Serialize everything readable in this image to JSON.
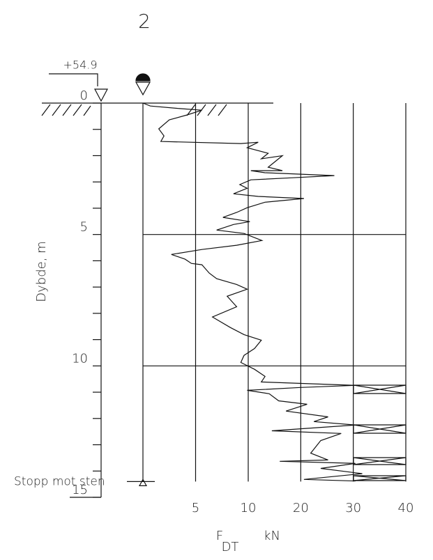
{
  "chart_data": {
    "type": "line",
    "title": "2",
    "elevation": "+54.9",
    "ylabel": "Dybde, m",
    "xlabel": "F",
    "xlabel_sub": "DT",
    "unit": "kN",
    "annotation": "Stopp mot sten",
    "stop_depth": 14.4,
    "xlim": [
      0,
      15
    ],
    "xticks": [
      0,
      5,
      10,
      15
    ],
    "xticks_minor": [
      1,
      2,
      3,
      4,
      6,
      7,
      8,
      9,
      11,
      12,
      13,
      14
    ],
    "ylim": [
      0,
      40
    ],
    "yticks": [
      5,
      10,
      20,
      30,
      40
    ],
    "scale_break": 10,
    "hgrid": [
      5,
      10
    ],
    "color": "#111111",
    "x": [
      0,
      0.11,
      0.21,
      0.27,
      0.45,
      0.64,
      0.98,
      1.25,
      1.46,
      1.54,
      1.49,
      1.7,
      1.91,
      2.12,
      2.0,
      2.44,
      2.57,
      2.57,
      2.65,
      2.76,
      2.84,
      2.92,
      3.1,
      3.24,
      3.45,
      3.55,
      3.63,
      3.77,
      3.98,
      4.16,
      4.35,
      4.51,
      4.62,
      4.83,
      4.96,
      5.23,
      5.41,
      5.57,
      5.76,
      5.94,
      6.1,
      6.15,
      6.47,
      6.68,
      6.9,
      7.08,
      7.35,
      7.75,
      8.14,
      8.54,
      8.81,
      9.02,
      9.34,
      9.6,
      9.87,
      10.13,
      10.4,
      10.61,
      10.74,
      10.82,
      10.93,
      11.06,
      11.33,
      11.46,
      11.72,
      11.94,
      12.12,
      12.25,
      12.47,
      12.57,
      12.84,
      13.32,
      13.58,
      13.63,
      13.71,
      13.9,
      14.1,
      14.32,
      14.38
    ],
    "values": [
      0,
      0.7,
      3.5,
      5.6,
      4.2,
      2.5,
      1.5,
      2,
      1.7,
      9.3,
      11.9,
      9.9,
      13.8,
      12.5,
      16.5,
      13.8,
      16.5,
      10.5,
      13.2,
      26.4,
      18.5,
      10.5,
      9.2,
      9.9,
      8.6,
      11.9,
      20.6,
      13.2,
      9.9,
      8.9,
      7.6,
      10.3,
      8.6,
      7,
      9.6,
      12.6,
      8.9,
      5.6,
      2.7,
      4,
      4.6,
      5.6,
      6.3,
      7,
      8.9,
      9.9,
      8,
      8.9,
      6.6,
      8.3,
      9.6,
      12.5,
      11.2,
      9.6,
      9.3,
      11.2,
      13.2,
      12.5,
      30.4,
      19.9,
      9.9,
      14,
      15.8,
      21.2,
      17.2,
      25.2,
      22.5,
      30.4,
      14.5,
      27.7,
      23.8,
      21.9,
      25.2,
      16,
      30.4,
      23.8,
      31.7,
      20.6,
      30.4
    ]
  }
}
